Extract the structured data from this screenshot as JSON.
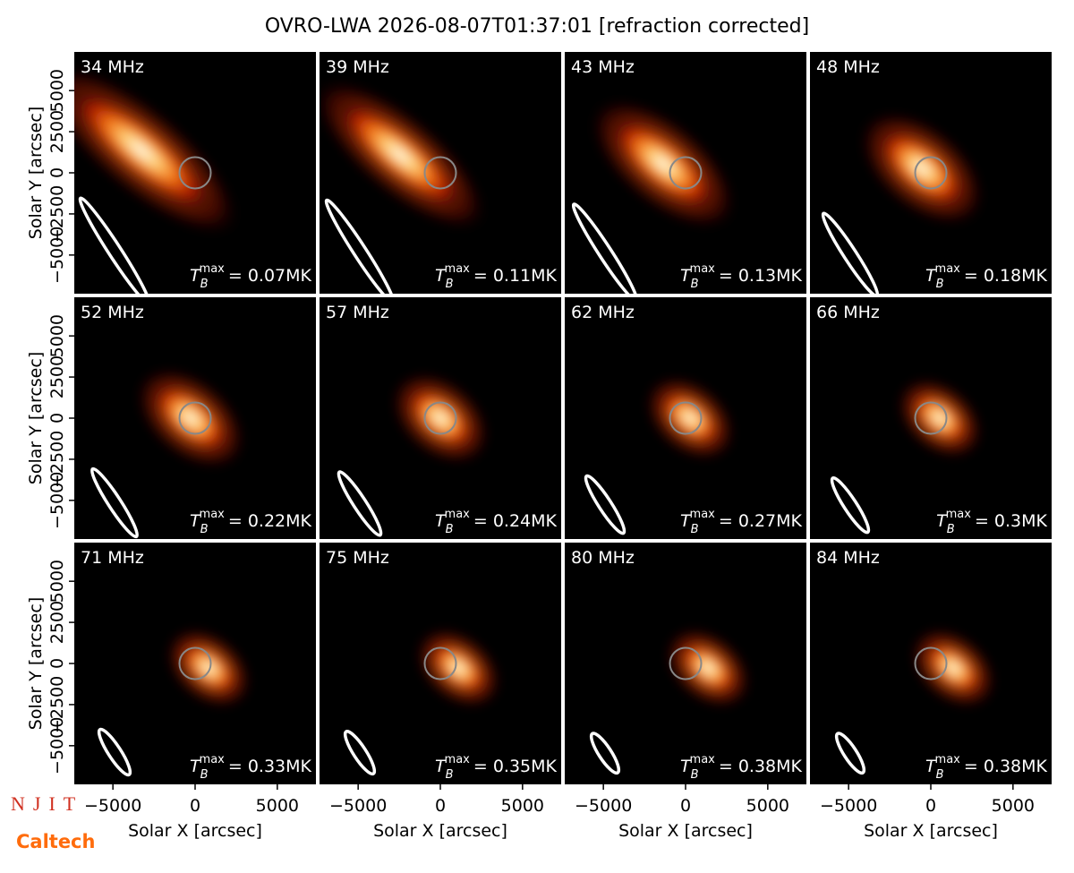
{
  "title": "OVRO-LWA 2026-08-07T01:37:01 [refraction corrected]",
  "xlabel": "Solar X [arcsec]",
  "ylabel": "Solar Y [arcsec]",
  "xlim": [
    -7350,
    7350
  ],
  "ylim": [
    -7350,
    7350
  ],
  "xticks": [
    {
      "value": -5000,
      "label": "−5000"
    },
    0,
    5000
  ],
  "yticks": [
    {
      "value": -5000,
      "label": "−5000"
    },
    {
      "value": -2500,
      "label": "−2500"
    },
    0,
    2500,
    5000
  ],
  "tb_symbol": "T",
  "tb_sub": "B",
  "tb_sup": "max",
  "panels": [
    {
      "freq": "34 MHz",
      "tb_label": "= 0.07MK"
    },
    {
      "freq": "39 MHz",
      "tb_label": "= 0.11MK"
    },
    {
      "freq": "43 MHz",
      "tb_label": "= 0.13MK"
    },
    {
      "freq": "48 MHz",
      "tb_label": "= 0.18MK"
    },
    {
      "freq": "52 MHz",
      "tb_label": "= 0.22MK"
    },
    {
      "freq": "57 MHz",
      "tb_label": "= 0.24MK"
    },
    {
      "freq": "62 MHz",
      "tb_label": "= 0.27MK"
    },
    {
      "freq": "66 MHz",
      "tb_label": "= 0.3MK"
    },
    {
      "freq": "71 MHz",
      "tb_label": "= 0.33MK"
    },
    {
      "freq": "75 MHz",
      "tb_label": "= 0.35MK"
    },
    {
      "freq": "80 MHz",
      "tb_label": "= 0.38MK"
    },
    {
      "freq": "84 MHz",
      "tb_label": "= 0.38MK"
    }
  ],
  "logos": [
    "NJIT",
    "Caltech"
  ]
}
